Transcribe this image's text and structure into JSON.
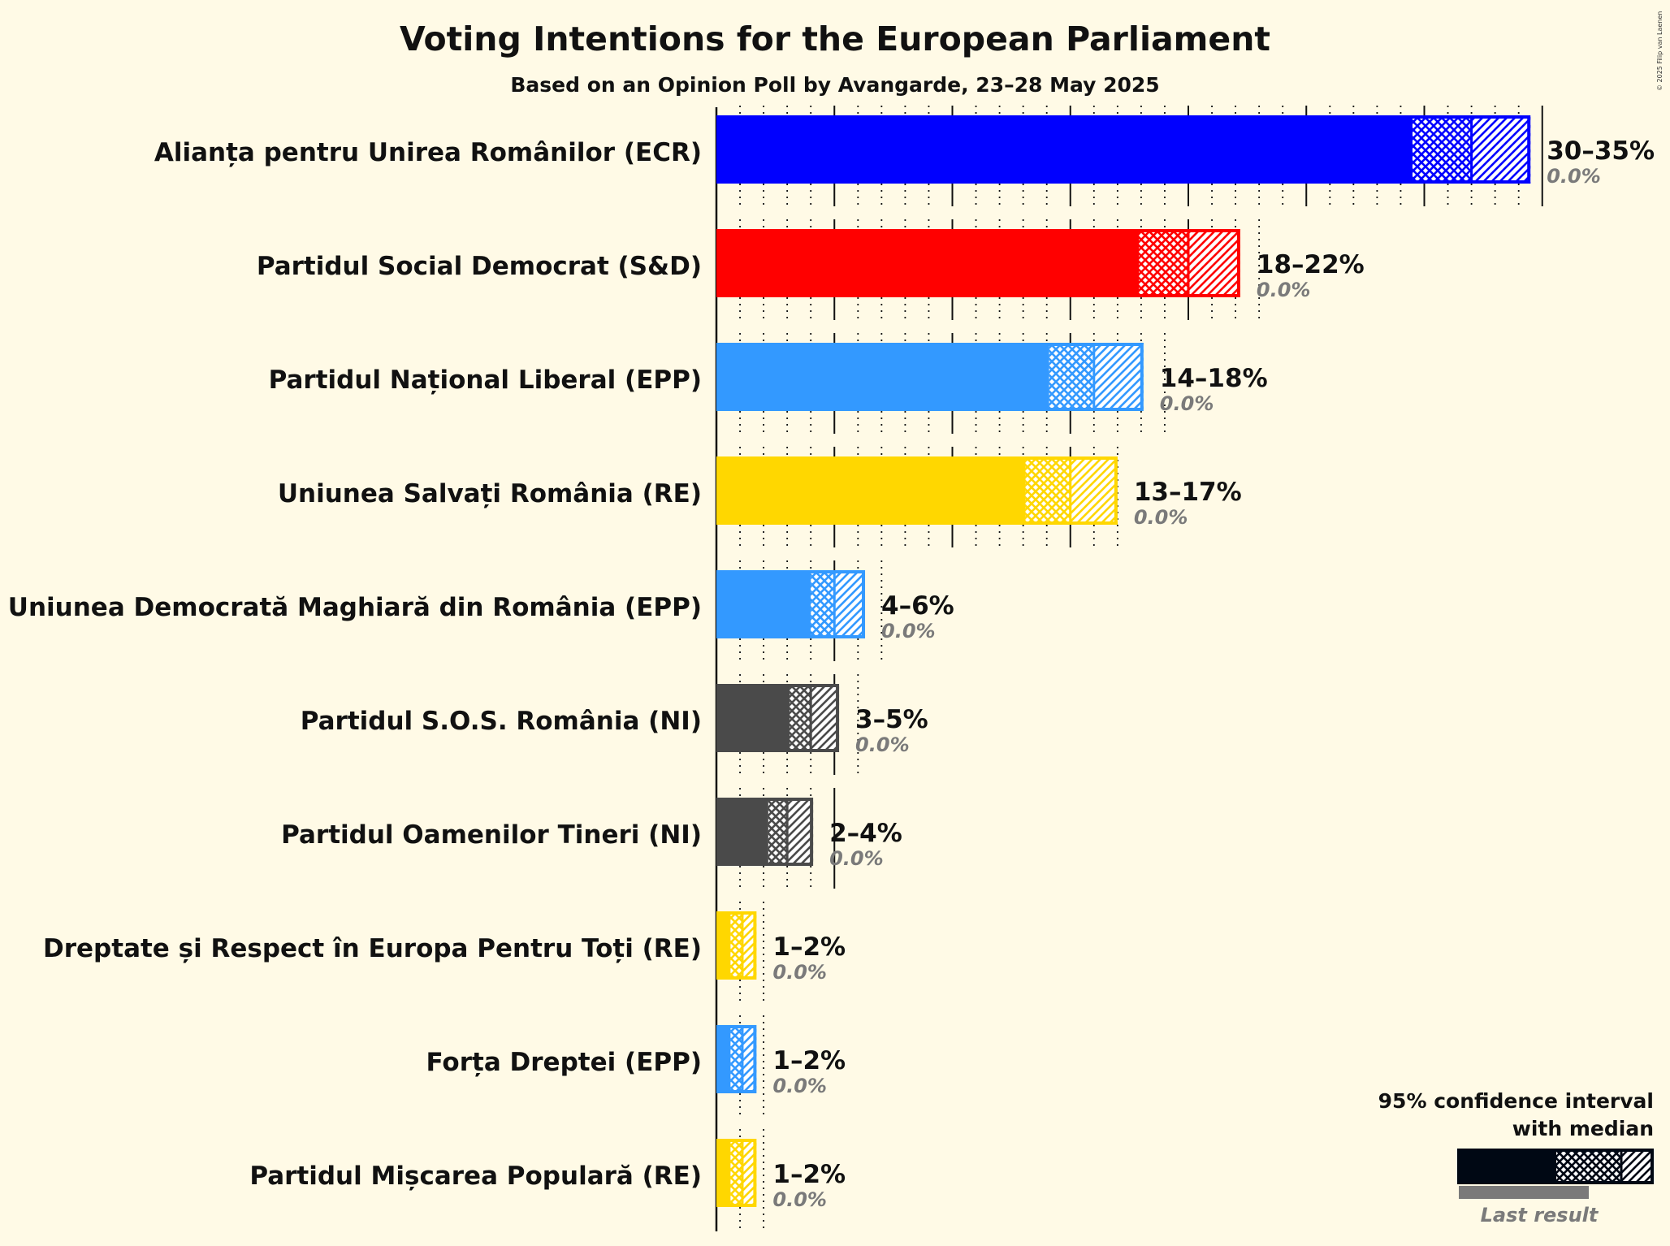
{
  "chart_data": {
    "type": "bar",
    "orientation": "horizontal",
    "title": "Voting Intentions for the European Parliament",
    "subtitle": "Based on an Opinion Poll by Avangarde, 23–28 May 2025",
    "copyright": "© 2025 Filip van Laenen",
    "xlim": [
      0,
      35
    ],
    "grid": "dotted every 1%, solid every 5%",
    "parties": [
      {
        "name": "Alianța pentru Unirea Românilor (ECR)",
        "color": "#0000ff",
        "solid_end": 29.5,
        "median": 32.0,
        "high": 34.5,
        "range_label": "30–35%",
        "last_label": "0.0%",
        "last": 0.0
      },
      {
        "name": "Partidul Social Democrat (S&D)",
        "color": "#ff0000",
        "solid_end": 17.9,
        "median": 20.0,
        "high": 22.2,
        "range_label": "18–22%",
        "last_label": "0.0%",
        "last": 0.0
      },
      {
        "name": "Partidul Național Liberal (EPP)",
        "color": "#3399ff",
        "solid_end": 14.1,
        "median": 16.0,
        "high": 18.1,
        "range_label": "14–18%",
        "last_label": "0.0%",
        "last": 0.0
      },
      {
        "name": "Uniunea Salvați România (RE)",
        "color": "#ffd700",
        "solid_end": 13.1,
        "median": 15.0,
        "high": 17.0,
        "range_label": "13–17%",
        "last_label": "0.0%",
        "last": 0.0
      },
      {
        "name": "Uniunea Democrată Maghiară din România (EPP)",
        "color": "#3399ff",
        "solid_end": 4.0,
        "median": 5.0,
        "high": 6.3,
        "range_label": "4–6%",
        "last_label": "0.0%",
        "last": 0.0
      },
      {
        "name": "Partidul S.O.S. România (NI)",
        "color": "#4a4a4a",
        "solid_end": 3.1,
        "median": 4.0,
        "high": 5.2,
        "range_label": "3–5%",
        "last_label": "0.0%",
        "last": 0.0
      },
      {
        "name": "Partidul Oamenilor Tineri (NI)",
        "color": "#4a4a4a",
        "solid_end": 2.2,
        "median": 3.0,
        "high": 4.1,
        "range_label": "2–4%",
        "last_label": "0.0%",
        "last": 0.0
      },
      {
        "name": "Dreptate și Respect în Europa Pentru Toți (RE)",
        "color": "#ffd700",
        "solid_end": 0.6,
        "median": 1.1,
        "high": 1.7,
        "range_label": "1–2%",
        "last_label": "0.0%",
        "last": 0.0
      },
      {
        "name": "Forța Dreptei (EPP)",
        "color": "#3399ff",
        "solid_end": 0.6,
        "median": 1.1,
        "high": 1.7,
        "range_label": "1–2%",
        "last_label": "0.0%",
        "last": 0.0
      },
      {
        "name": "Partidul Mișcarea Populară (RE)",
        "color": "#ffd700",
        "solid_end": 0.6,
        "median": 1.1,
        "high": 1.7,
        "range_label": "1–2%",
        "last_label": "0.0%",
        "last": 0.0
      }
    ],
    "legend": {
      "line1": "95% confidence interval",
      "line2": "with median",
      "last_result": "Last result",
      "placement": "bottom-right"
    }
  }
}
